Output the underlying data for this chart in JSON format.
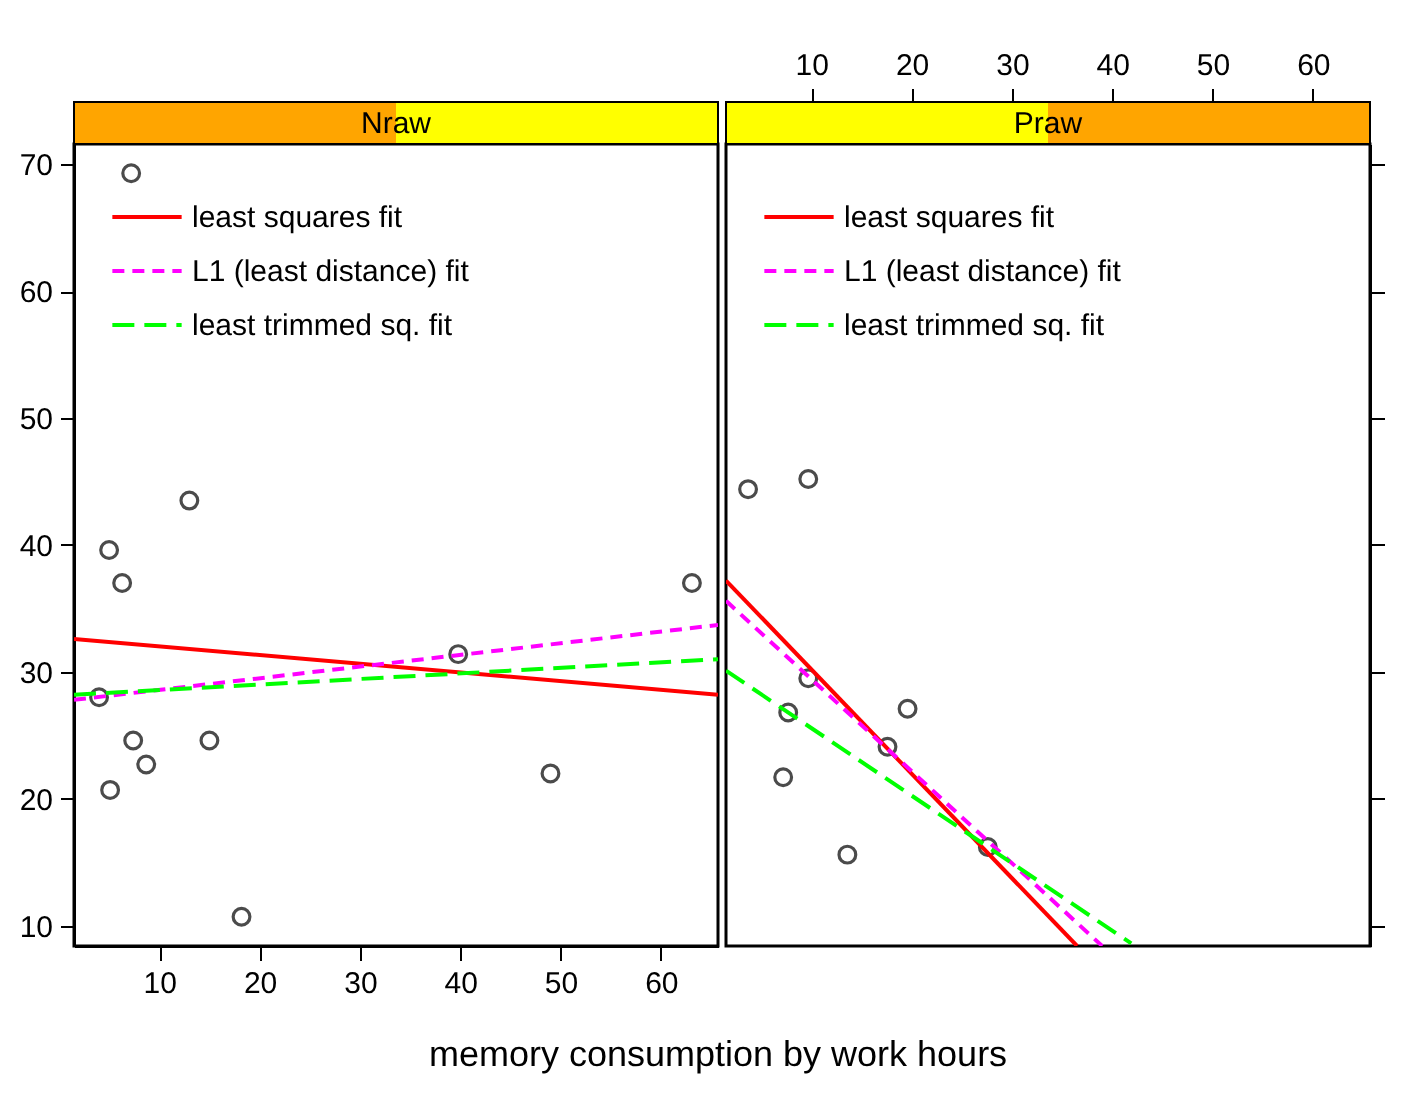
{
  "chart_data": [
    {
      "type": "scatter",
      "title": "Nraw",
      "xlabel": "memory consumption by work hours",
      "xlim": [
        1.5,
        65.7
      ],
      "ylim": [
        8.4,
        71.6
      ],
      "xticks": [
        10,
        20,
        30,
        40,
        50,
        60
      ],
      "yticks": [
        10,
        20,
        30,
        40,
        50,
        60,
        70
      ],
      "grid": false,
      "legend": "top left",
      "series": [
        {
          "color": "#000000",
          "marker": "circle",
          "x": [
            7.2,
            5.0,
            6.3,
            13.0,
            4.0,
            7.4,
            8.7,
            5.1,
            15.0,
            18.2,
            39.8,
            49.0,
            63.1
          ],
          "values": [
            69.3,
            39.6,
            37.0,
            43.5,
            28.0,
            24.6,
            22.7,
            20.7,
            24.6,
            10.7,
            31.4,
            22.0,
            37.0
          ]
        },
        {
          "type": "line",
          "name": "least squares fit",
          "color": "#ff0000",
          "line_style": "solid",
          "x": [
            1.5,
            65.7
          ],
          "values": [
            32.6,
            28.2
          ]
        },
        {
          "type": "line",
          "name": "L1 (least distance) fit",
          "color": "#ff00ff",
          "line_style": "dashed",
          "x": [
            1.5,
            65.7
          ],
          "values": [
            27.8,
            33.7
          ]
        },
        {
          "type": "line",
          "name": "least trimmed sq. fit",
          "color": "#00ff00",
          "line_style": "dashed",
          "x": [
            1.5,
            65.7
          ],
          "values": [
            28.2,
            31.0
          ]
        }
      ]
    },
    {
      "type": "scatter",
      "title": "Praw",
      "xlim": [
        1.5,
        65.7
      ],
      "ylim": [
        8.4,
        71.6
      ],
      "xticks": [
        10,
        20,
        30,
        40,
        50,
        60
      ],
      "yticks": [
        10,
        20,
        30,
        40,
        50,
        60,
        70
      ],
      "grid": false,
      "legend": "top left",
      "tick_labels": "x",
      "series": [
        {
          "color": "#000000",
          "marker": "circle",
          "x": [
            3.7,
            9.7,
            9.7,
            7.7,
            19.6,
            17.6,
            7.2,
            13.6,
            27.6
          ],
          "values": [
            44.4,
            45.2,
            29.5,
            26.8,
            27.1,
            24.1,
            21.7,
            15.6,
            16.2
          ]
        },
        {
          "type": "line",
          "name": "least squares fit",
          "color": "#ff0000",
          "line_style": "solid",
          "x": [
            1.5,
            36.5
          ],
          "values": [
            37.2,
            8.4
          ]
        },
        {
          "type": "line",
          "name": "L1 (least distance) fit",
          "color": "#ff00ff",
          "line_style": "dashed",
          "x": [
            1.5,
            39.0
          ],
          "values": [
            35.6,
            8.4
          ]
        },
        {
          "type": "line",
          "name": "least trimmed sq. fit",
          "color": "#00ff00",
          "line_style": "dashed",
          "x": [
            1.5,
            41.9
          ],
          "values": [
            30.1,
            8.6
          ]
        }
      ]
    }
  ]
}
